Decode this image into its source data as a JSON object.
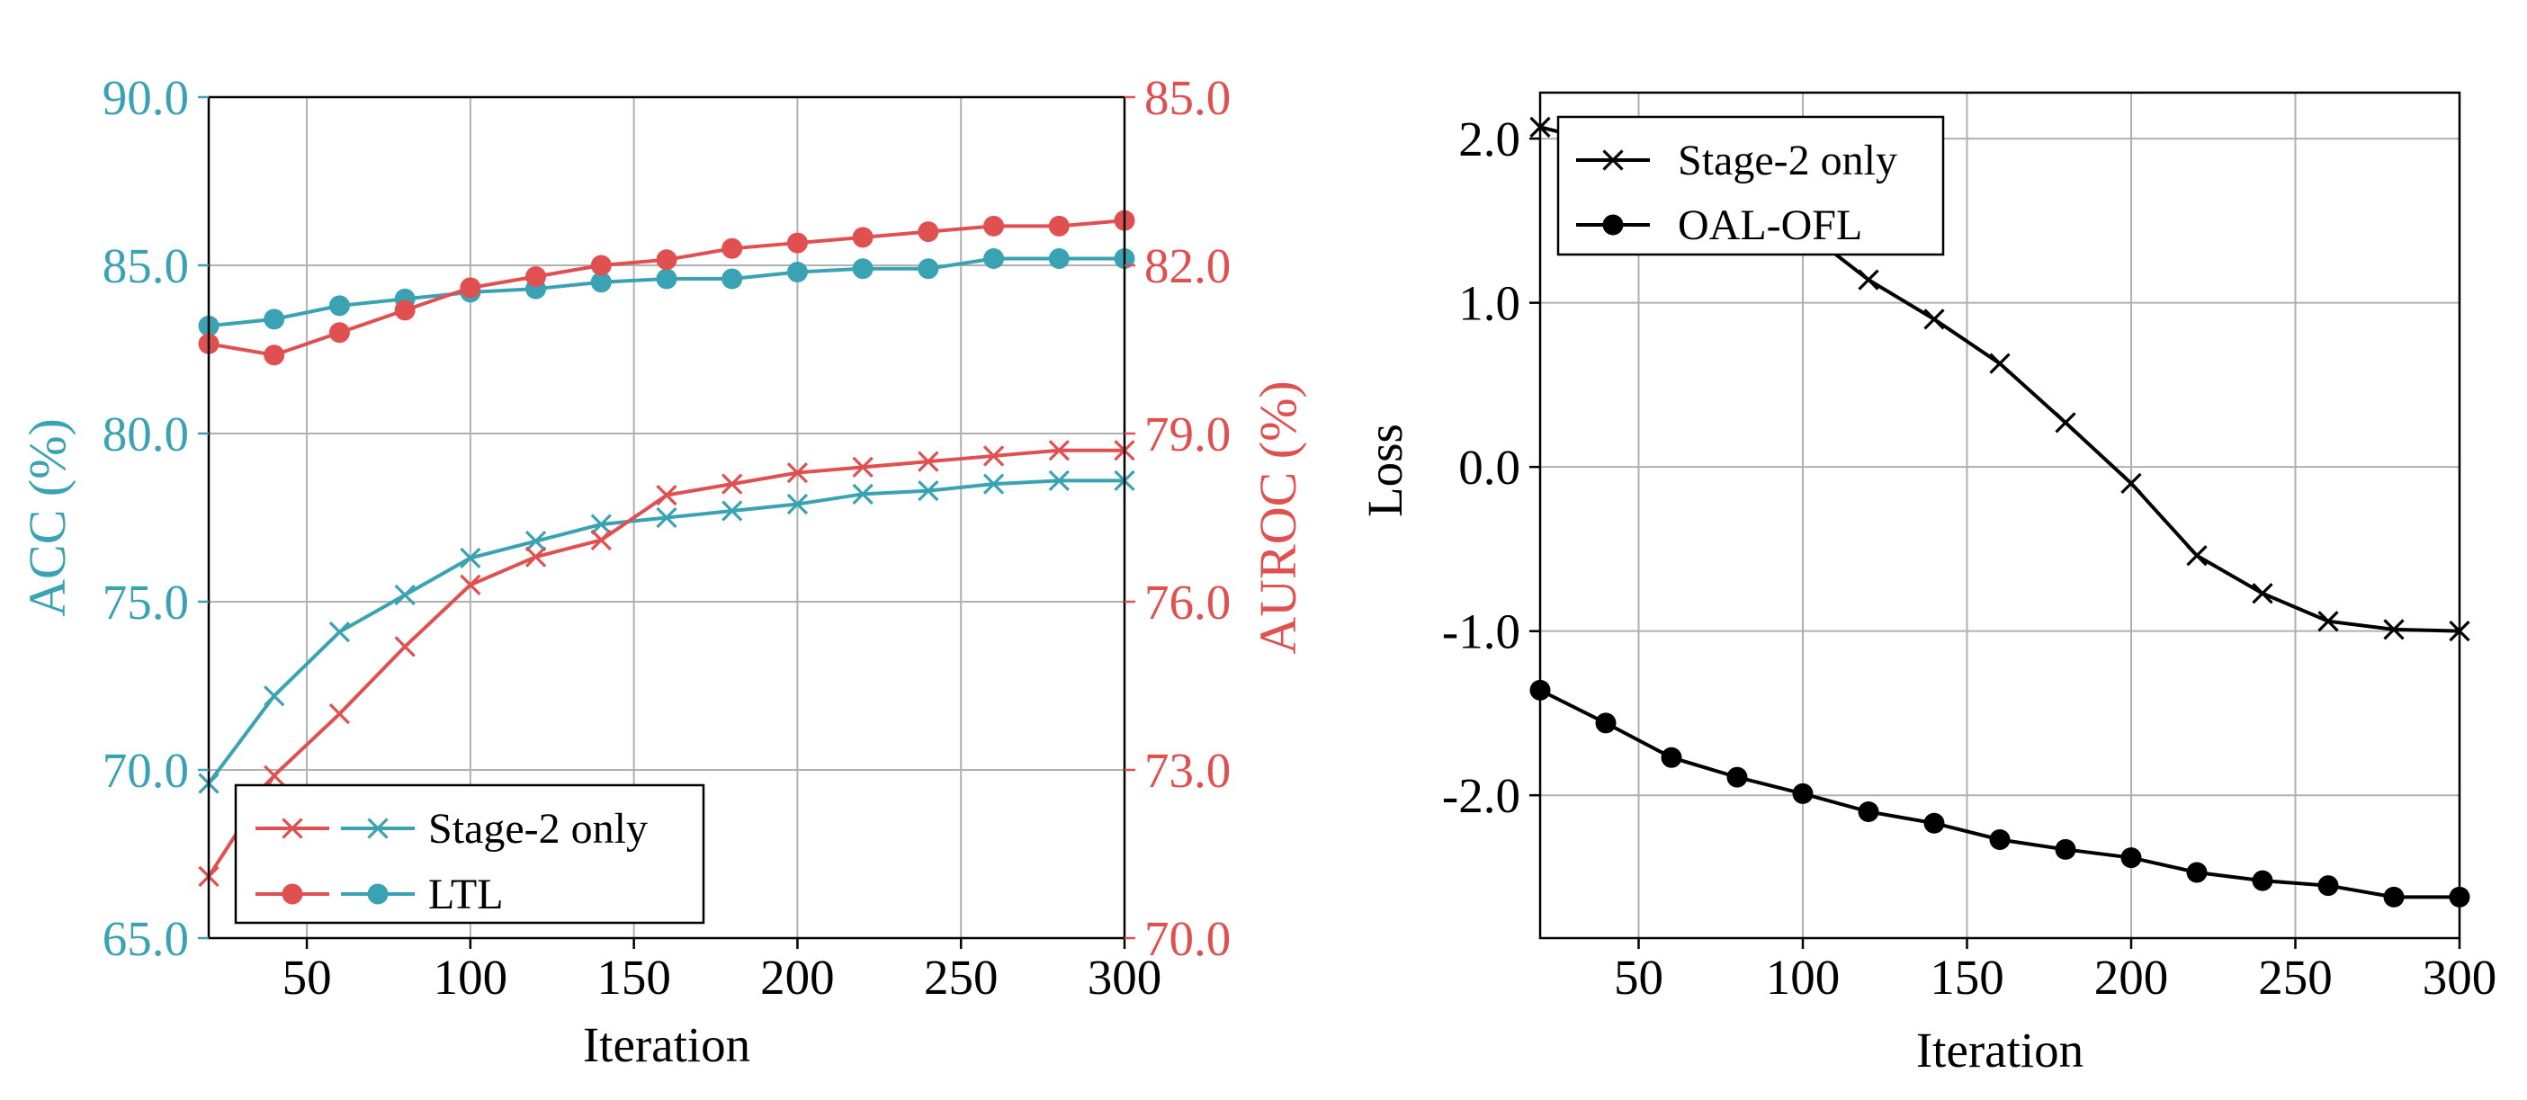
{
  "colors": {
    "acc": "#3aa3b3",
    "auroc": "#e05050",
    "loss": "#000000",
    "grid": "#b0b0b0"
  },
  "chart_data": [
    {
      "type": "line",
      "xlabel": "Iteration",
      "ylabel": "ACC (%)",
      "y2label": "AUROC (%)",
      "xlim": [
        20,
        300
      ],
      "ylim": [
        65,
        90
      ],
      "y2lim": [
        70,
        85
      ],
      "xticks": [
        50,
        100,
        150,
        200,
        250,
        300
      ],
      "yticks": [
        "65.0",
        "70.0",
        "75.0",
        "80.0",
        "85.0",
        "90.0"
      ],
      "y2ticks": [
        "70.0",
        "73.0",
        "76.0",
        "79.0",
        "82.0",
        "85.0"
      ],
      "grid": true,
      "legend_position": "lower-left",
      "legend": [
        "Stage-2 only",
        "LTL"
      ],
      "x": [
        20,
        40,
        60,
        80,
        100,
        120,
        140,
        160,
        180,
        200,
        220,
        240,
        260,
        280,
        300
      ],
      "series": [
        {
          "name": "Stage-2 only",
          "axis": "ACC",
          "marker": "x",
          "color": "#3aa3b3",
          "values": [
            69.6,
            72.2,
            74.1,
            75.2,
            76.3,
            76.8,
            77.3,
            77.5,
            77.7,
            77.9,
            78.2,
            78.3,
            78.5,
            78.6,
            78.6
          ]
        },
        {
          "name": "LTL",
          "axis": "ACC",
          "marker": "o",
          "color": "#3aa3b3",
          "values": [
            83.2,
            83.4,
            83.8,
            84.0,
            84.2,
            84.3,
            84.5,
            84.6,
            84.6,
            84.8,
            84.9,
            84.9,
            85.2,
            85.2,
            85.2
          ]
        },
        {
          "name": "Stage-2 only",
          "axis": "AUROC",
          "marker": "x",
          "color": "#e05050",
          "values": [
            71.1,
            72.9,
            74.0,
            75.2,
            76.3,
            76.8,
            77.1,
            77.9,
            78.1,
            78.3,
            78.4,
            78.5,
            78.6,
            78.7,
            78.7
          ]
        },
        {
          "name": "LTL",
          "axis": "AUROC",
          "marker": "o",
          "color": "#e05050",
          "values": [
            80.6,
            80.4,
            80.8,
            81.2,
            81.6,
            81.8,
            82.0,
            82.1,
            82.3,
            82.4,
            82.5,
            82.6,
            82.7,
            82.7,
            82.8
          ]
        }
      ]
    },
    {
      "type": "line",
      "xlabel": "Iteration",
      "ylabel": "Loss",
      "xlim": [
        20,
        300
      ],
      "ylim": [
        -2.87,
        2.28
      ],
      "xticks": [
        50,
        100,
        150,
        200,
        250,
        300
      ],
      "yticks": [
        "-2.0",
        "-1.0",
        "0.0",
        "1.0",
        "2.0"
      ],
      "grid": true,
      "legend_position": "upper-left",
      "legend": [
        "Stage-2 only",
        "OAL-OFL"
      ],
      "x": [
        20,
        40,
        60,
        80,
        100,
        120,
        140,
        160,
        180,
        200,
        220,
        240,
        260,
        280,
        300
      ],
      "series": [
        {
          "name": "Stage-2 only",
          "marker": "x",
          "color": "#000000",
          "values": [
            2.07,
            1.97,
            1.85,
            1.72,
            1.45,
            1.14,
            0.9,
            0.63,
            0.27,
            -0.1,
            -0.54,
            -0.77,
            -0.94,
            -0.99,
            -1.0
          ]
        },
        {
          "name": "OAL-OFL",
          "marker": "o",
          "color": "#000000",
          "values": [
            -1.36,
            -1.56,
            -1.77,
            -1.89,
            -1.99,
            -2.1,
            -2.17,
            -2.27,
            -2.33,
            -2.38,
            -2.47,
            -2.52,
            -2.55,
            -2.62,
            -2.62
          ]
        }
      ]
    }
  ]
}
